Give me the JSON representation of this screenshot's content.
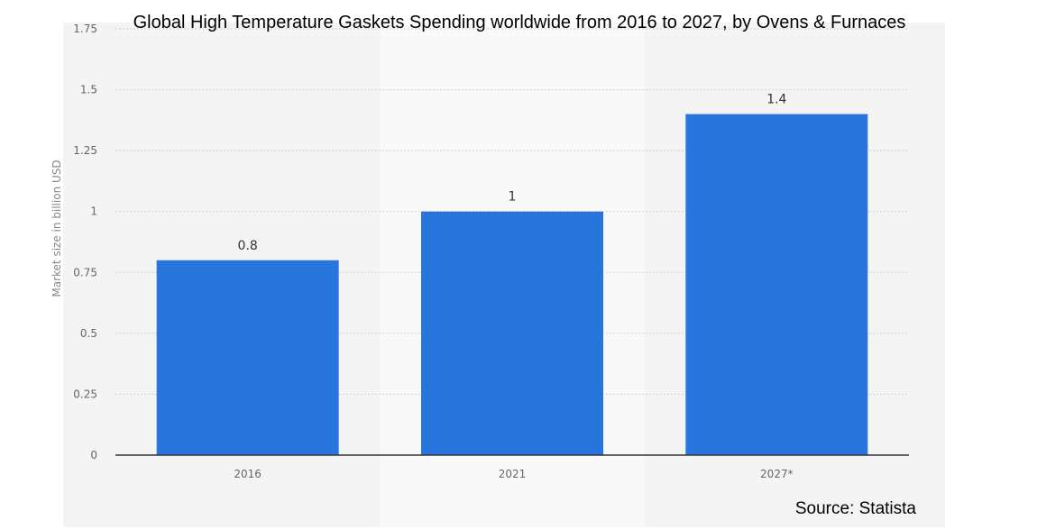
{
  "chart_data": {
    "type": "bar",
    "title": "Global High Temperature Gaskets  Spending worldwide from 2016 to 2027, by Ovens & Furnaces",
    "categories": [
      "2016",
      "2021",
      "2027*"
    ],
    "values": [
      0.8,
      1,
      1.4
    ],
    "data_labels": [
      "0.8",
      "1",
      "1.4"
    ],
    "xlabel": "",
    "ylabel": "Market size in billion USD",
    "ylim": [
      0,
      1.75
    ],
    "yticks": [
      0,
      0.25,
      0.5,
      0.75,
      1,
      1.25,
      1.5,
      1.75
    ],
    "ytick_labels": [
      "0",
      "0.25",
      "0.5",
      "0.75",
      "1",
      "1.25",
      "1.5",
      "1.75"
    ],
    "grid": true,
    "source": "Source: Statista",
    "colors": {
      "bar": "#2876dd",
      "plot_background": "#f4f4f4",
      "band_background": "#f9f9f9",
      "grid": "#cccccc",
      "axis": "#333333"
    }
  }
}
